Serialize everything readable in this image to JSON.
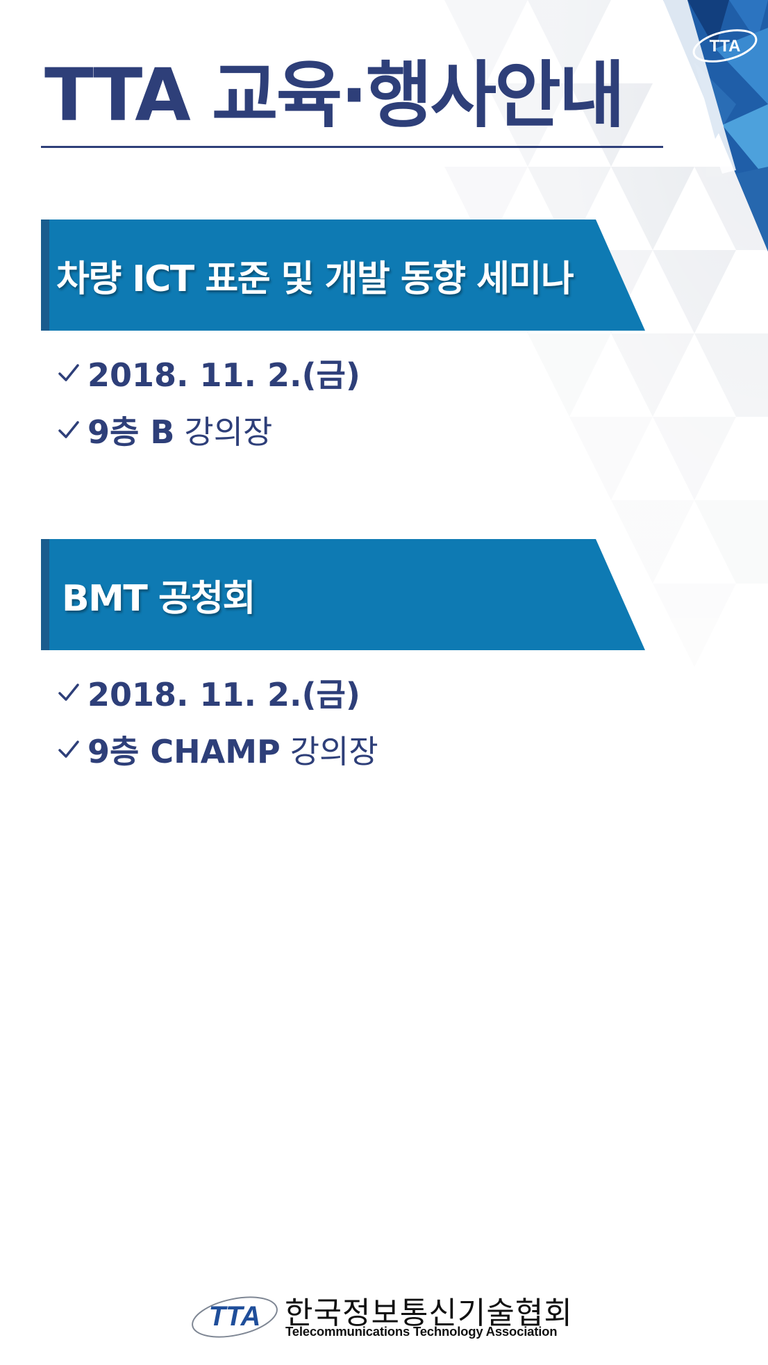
{
  "colors": {
    "title": "#2e3f79",
    "banner": "#0e7ab3",
    "banner_edge": "#1a5c8e",
    "corner_blue": "#1f5ea8",
    "text": "#2e3f79"
  },
  "page": {
    "title": "TTA 교육·행사안내"
  },
  "corner_logo": {
    "icon": "tta-logo-icon",
    "text": "TTA"
  },
  "events": [
    {
      "title": "차량 ICT 표준 및 개발 동향 세미나",
      "date_check": "✓",
      "date": "2018. 11. 2.(금)",
      "location_check": "✓",
      "floor": "9층 B",
      "room": "강의장"
    },
    {
      "title": "BMT 공청회",
      "date_check": "✓",
      "date": "2018. 11. 2.(금)",
      "location_check": "✓",
      "floor": "9층 CHAMP",
      "room": "강의장"
    }
  ],
  "footer": {
    "mark_text": "TTA",
    "org_name_kr": "한국정보통신기술협회",
    "org_name_en": "Telecommunications Technology Association"
  }
}
